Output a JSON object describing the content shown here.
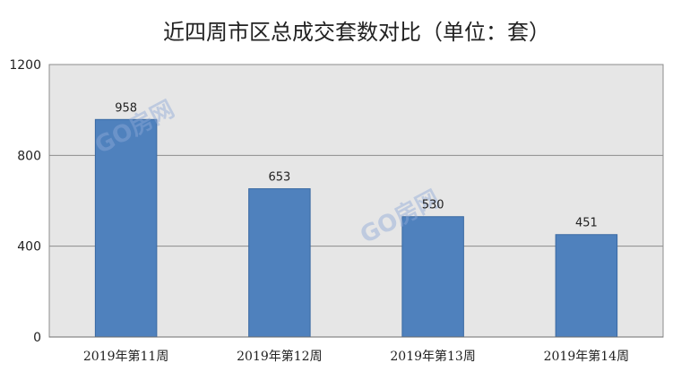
{
  "chart_data": {
    "type": "bar",
    "title": "近四周市区总成交套数对比（单位：套）",
    "categories": [
      "2019年第11周",
      "2019年第12周",
      "2019年第13周",
      "2019年第14周"
    ],
    "values": [
      958,
      653,
      530,
      451
    ],
    "data_labels": [
      "958",
      "653",
      "530",
      "451"
    ],
    "ylim": [
      0,
      1200
    ],
    "yticks": [
      0,
      400,
      800,
      1200
    ],
    "ytick_labels": [
      "0",
      "400",
      "800",
      "1200"
    ],
    "xlabel": "",
    "ylabel": "",
    "grid": true,
    "legend": "none",
    "colors": {
      "bar": "#4f81bd",
      "bar_edge": "#3a6aa3",
      "plot_bg": "#e6e6e6",
      "gridline": "#8c8c8c",
      "watermark": "#8fa8d8"
    }
  },
  "watermark": {
    "text": "GO房网"
  }
}
